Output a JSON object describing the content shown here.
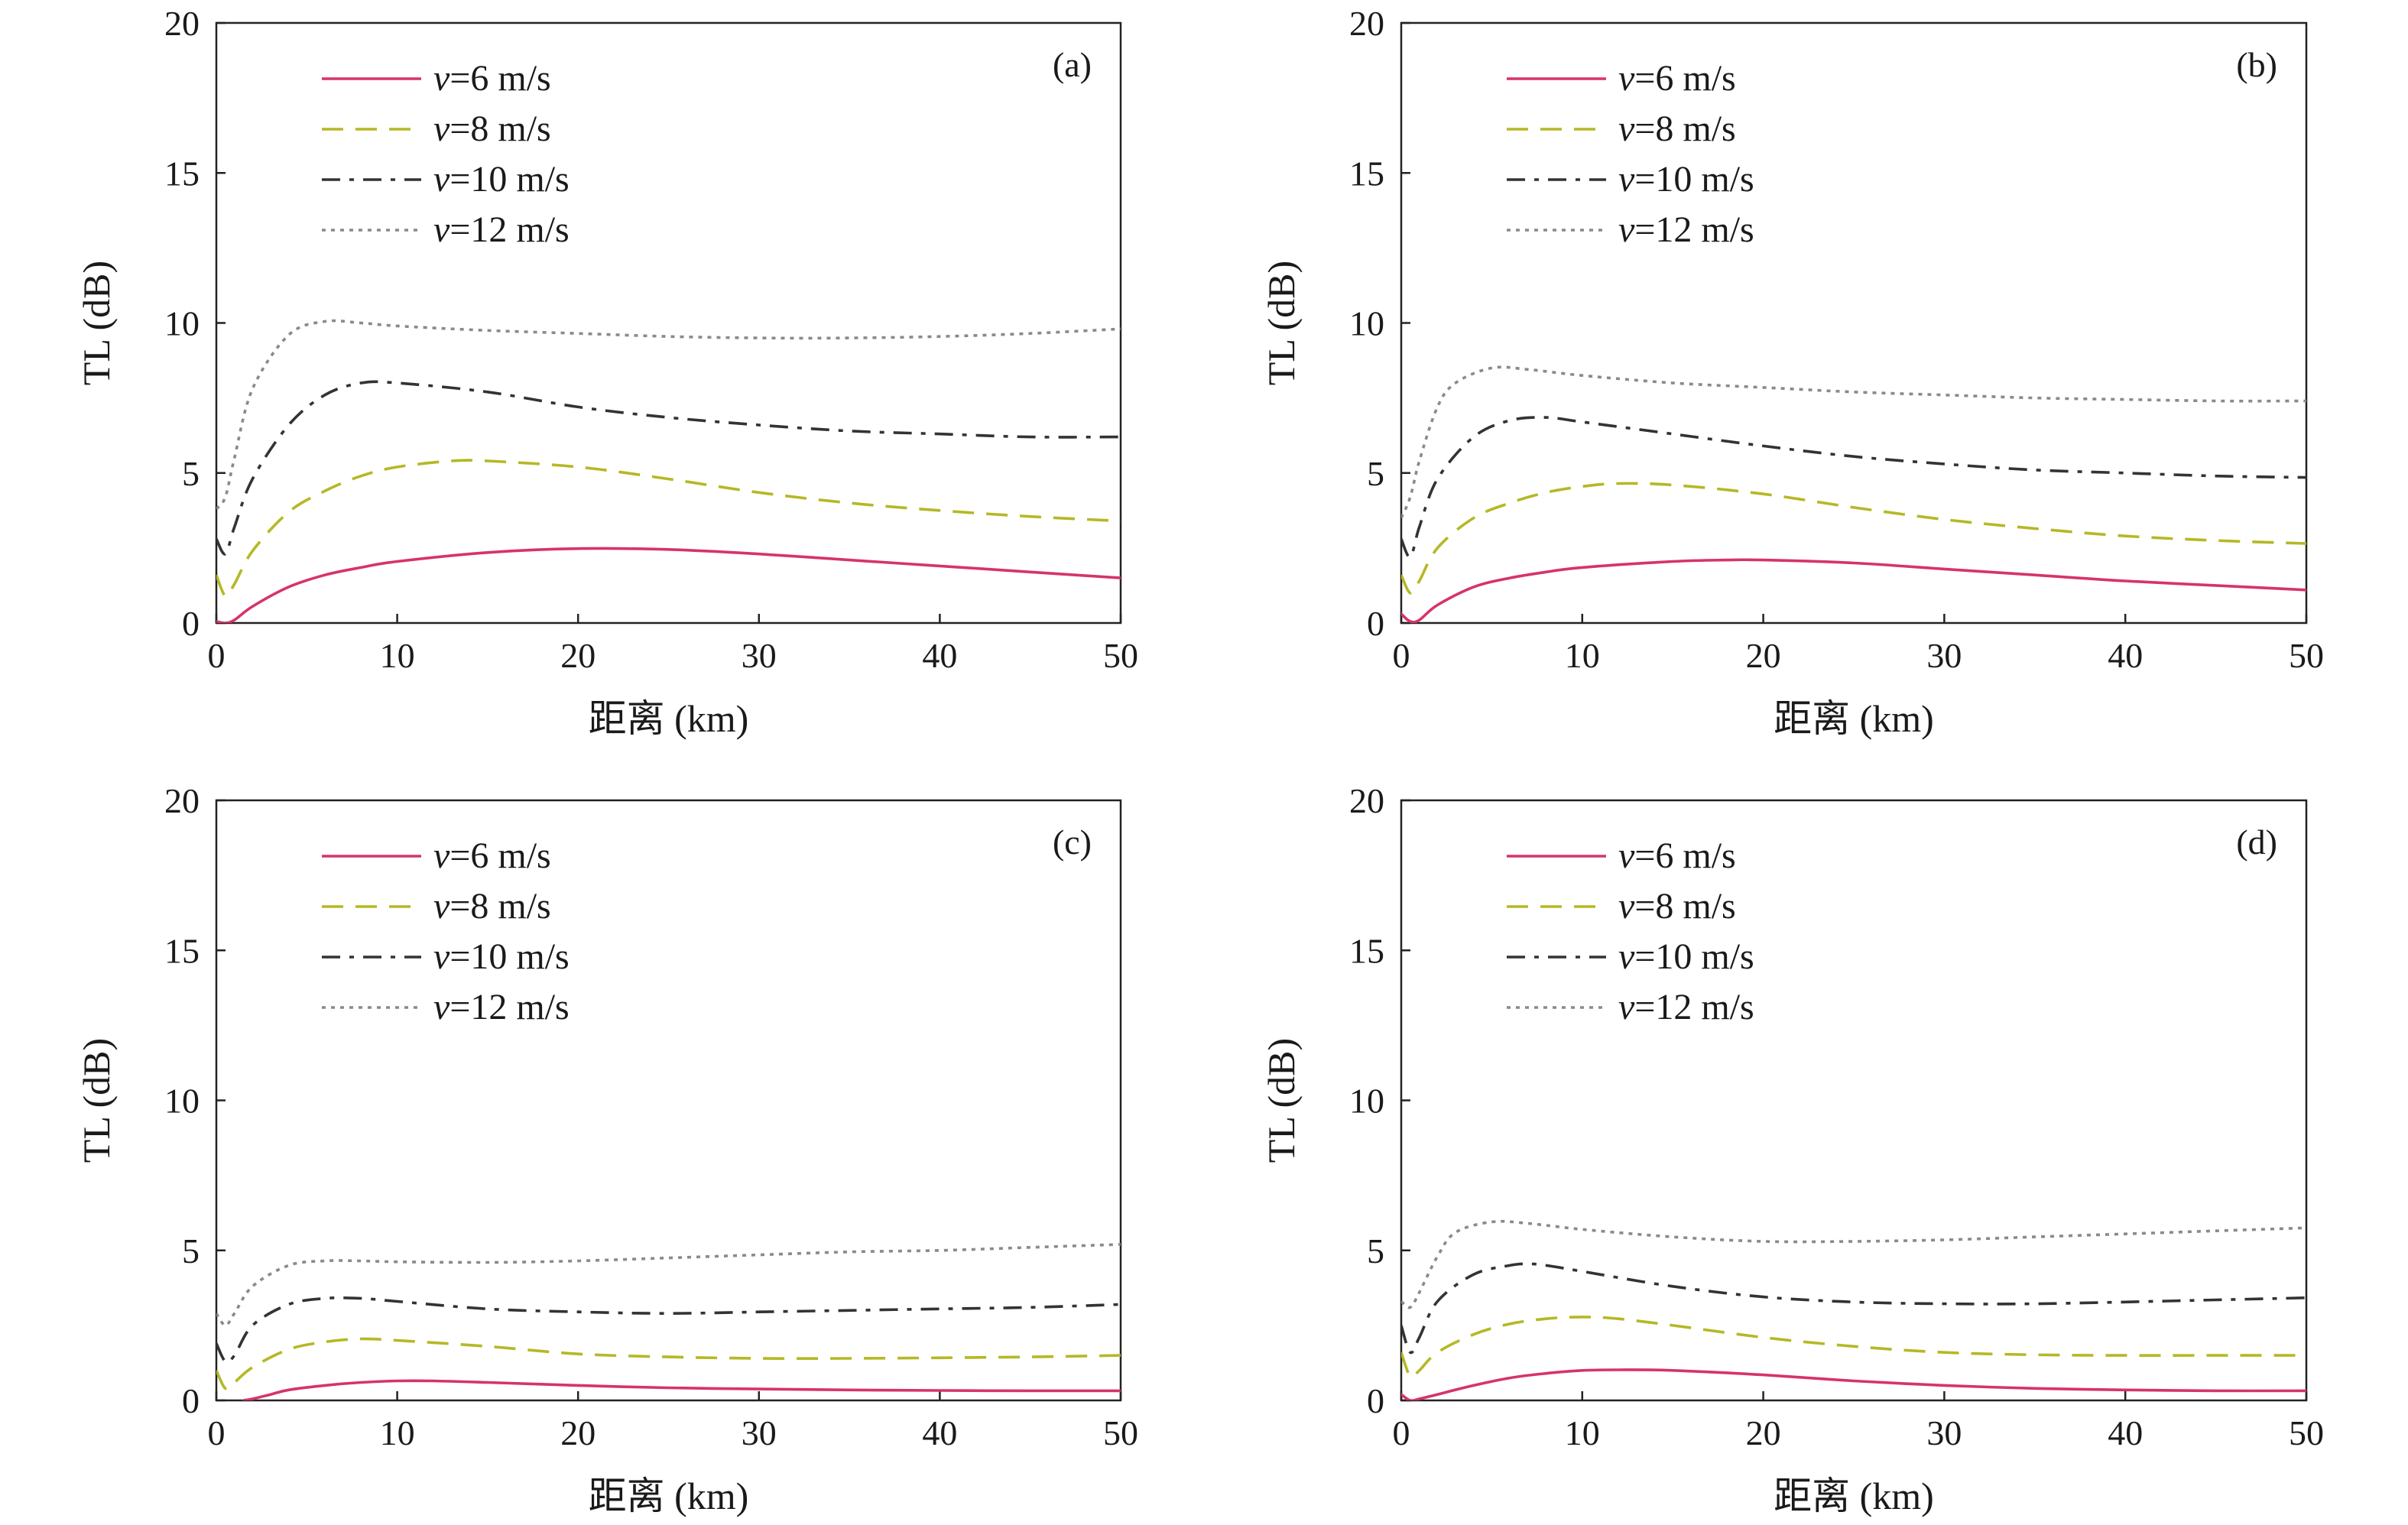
{
  "chart_data": [
    {
      "type": "line",
      "panel": "(a)",
      "xlabel": "距离 (km)",
      "ylabel": "TL (dB)",
      "xlim": [
        0,
        50
      ],
      "ylim": [
        0,
        20
      ],
      "xticks": [
        "0",
        "10",
        "20",
        "30",
        "40",
        "50"
      ],
      "yticks": [
        "0",
        "5",
        "10",
        "15",
        "20"
      ],
      "legend_position": "top-left",
      "series": [
        {
          "name": "v=6 m/s",
          "name_var": "v",
          "name_rest": "=6 m/s",
          "color": "#d6336c",
          "dash": "solid",
          "x": [
            0,
            0.5,
            1,
            2,
            4,
            6,
            8,
            10,
            15,
            20,
            25,
            30,
            35,
            40,
            45,
            50
          ],
          "y": [
            0.05,
            0.0,
            0.1,
            0.55,
            1.2,
            1.6,
            1.85,
            2.05,
            2.35,
            2.48,
            2.45,
            2.3,
            2.1,
            1.9,
            1.7,
            1.5
          ]
        },
        {
          "name": "v=8 m/s",
          "name_var": "v",
          "name_rest": "=8 m/s",
          "color": "#b5b825",
          "dash": "dashed",
          "x": [
            0,
            0.5,
            1,
            2,
            4,
            6,
            8,
            10,
            13,
            15,
            20,
            25,
            30,
            35,
            40,
            45,
            50
          ],
          "y": [
            1.6,
            0.9,
            1.3,
            2.4,
            3.7,
            4.4,
            4.9,
            5.2,
            5.4,
            5.4,
            5.2,
            4.8,
            4.35,
            4.0,
            3.75,
            3.55,
            3.4
          ]
        },
        {
          "name": "v=10 m/s",
          "name_var": "v",
          "name_rest": "=10 m/s",
          "color": "#333333",
          "dash": "dashdot",
          "x": [
            0,
            0.5,
            1,
            2,
            4,
            6,
            8,
            10,
            15,
            20,
            25,
            30,
            35,
            40,
            45,
            50
          ],
          "y": [
            2.8,
            2.3,
            3.2,
            4.8,
            6.6,
            7.6,
            8.0,
            8.0,
            7.7,
            7.2,
            6.85,
            6.6,
            6.4,
            6.3,
            6.2,
            6.2
          ]
        },
        {
          "name": "v=12 m/s",
          "name_var": "v",
          "name_rest": "=12 m/s",
          "color": "#8a8a8a",
          "dash": "dotted",
          "x": [
            0,
            0.5,
            1,
            2,
            4,
            6,
            8,
            10,
            15,
            20,
            25,
            30,
            35,
            40,
            45,
            50
          ],
          "y": [
            3.8,
            4.2,
            5.5,
            7.8,
            9.6,
            10.05,
            10.0,
            9.9,
            9.75,
            9.65,
            9.55,
            9.5,
            9.5,
            9.55,
            9.65,
            9.8
          ]
        }
      ]
    },
    {
      "type": "line",
      "panel": "(b)",
      "xlabel": "距离 (km)",
      "ylabel": "TL (dB)",
      "xlim": [
        0,
        50
      ],
      "ylim": [
        0,
        20
      ],
      "xticks": [
        "0",
        "10",
        "20",
        "30",
        "40",
        "50"
      ],
      "yticks": [
        "0",
        "5",
        "10",
        "15",
        "20"
      ],
      "legend_position": "top-left",
      "series": [
        {
          "name": "v=6 m/s",
          "name_var": "v",
          "name_rest": "=6 m/s",
          "color": "#d6336c",
          "dash": "solid",
          "x": [
            0,
            0.5,
            1,
            2,
            4,
            6,
            8,
            10,
            15,
            18,
            20,
            25,
            30,
            35,
            40,
            45,
            50
          ],
          "y": [
            0.3,
            0.05,
            0.1,
            0.6,
            1.2,
            1.5,
            1.7,
            1.85,
            2.05,
            2.1,
            2.1,
            2.0,
            1.8,
            1.6,
            1.4,
            1.25,
            1.1
          ]
        },
        {
          "name": "v=8 m/s",
          "name_var": "v",
          "name_rest": "=8 m/s",
          "color": "#b5b825",
          "dash": "dashed",
          "x": [
            0,
            0.5,
            1,
            2,
            4,
            6,
            8,
            10,
            12,
            15,
            20,
            25,
            30,
            35,
            40,
            45,
            50
          ],
          "y": [
            1.6,
            1.0,
            1.4,
            2.5,
            3.5,
            4.0,
            4.35,
            4.55,
            4.65,
            4.6,
            4.3,
            3.85,
            3.45,
            3.15,
            2.9,
            2.75,
            2.65
          ]
        },
        {
          "name": "v=10 m/s",
          "name_var": "v",
          "name_rest": "=10 m/s",
          "color": "#333333",
          "dash": "dashdot",
          "x": [
            0,
            0.5,
            1,
            2,
            4,
            6,
            8,
            10,
            15,
            20,
            25,
            30,
            35,
            40,
            45,
            50
          ],
          "y": [
            2.8,
            2.2,
            3.2,
            4.8,
            6.2,
            6.75,
            6.85,
            6.7,
            6.3,
            5.9,
            5.55,
            5.3,
            5.1,
            5.0,
            4.9,
            4.85
          ]
        },
        {
          "name": "v=12 m/s",
          "name_var": "v",
          "name_rest": "=12 m/s",
          "color": "#8a8a8a",
          "dash": "dotted",
          "x": [
            0,
            0.5,
            1,
            2,
            3,
            5,
            7,
            10,
            15,
            20,
            25,
            30,
            35,
            40,
            45,
            50
          ],
          "y": [
            3.5,
            4.2,
            5.4,
            7.2,
            8.0,
            8.5,
            8.45,
            8.25,
            8.0,
            7.85,
            7.7,
            7.6,
            7.5,
            7.45,
            7.4,
            7.4
          ]
        }
      ]
    },
    {
      "type": "line",
      "panel": "(c)",
      "xlabel": "距离 (km)",
      "ylabel": "TL (dB)",
      "xlim": [
        0,
        50
      ],
      "ylim": [
        0,
        20
      ],
      "xticks": [
        "0",
        "10",
        "20",
        "30",
        "40",
        "50"
      ],
      "yticks": [
        "0",
        "5",
        "10",
        "15",
        "20"
      ],
      "legend_position": "top-left",
      "series": [
        {
          "name": "v=6 m/s",
          "name_var": "v",
          "name_rest": "=6 m/s",
          "color": "#d6336c",
          "dash": "solid",
          "x": [
            1.5,
            2,
            3,
            4,
            6,
            8,
            10,
            12,
            15,
            20,
            25,
            30,
            35,
            40,
            45,
            50
          ],
          "y": [
            0.0,
            0.05,
            0.2,
            0.35,
            0.5,
            0.6,
            0.65,
            0.65,
            0.6,
            0.5,
            0.42,
            0.38,
            0.35,
            0.33,
            0.32,
            0.32
          ]
        },
        {
          "name": "v=8 m/s",
          "name_var": "v",
          "name_rest": "=8 m/s",
          "color": "#b5b825",
          "dash": "dashed",
          "x": [
            0,
            0.5,
            1,
            2,
            4,
            6,
            8,
            10,
            15,
            20,
            25,
            30,
            35,
            40,
            45,
            50
          ],
          "y": [
            1.0,
            0.4,
            0.6,
            1.1,
            1.7,
            1.95,
            2.05,
            2.0,
            1.8,
            1.55,
            1.45,
            1.4,
            1.4,
            1.42,
            1.45,
            1.5
          ]
        },
        {
          "name": "v=10 m/s",
          "name_var": "v",
          "name_rest": "=10 m/s",
          "color": "#333333",
          "dash": "dashdot",
          "x": [
            0,
            0.5,
            1,
            2,
            4,
            6,
            8,
            10,
            15,
            20,
            25,
            30,
            35,
            40,
            45,
            50
          ],
          "y": [
            1.9,
            1.3,
            1.5,
            2.5,
            3.2,
            3.4,
            3.4,
            3.3,
            3.05,
            2.95,
            2.9,
            2.95,
            3.0,
            3.05,
            3.1,
            3.2
          ]
        },
        {
          "name": "v=12 m/s",
          "name_var": "v",
          "name_rest": "=12 m/s",
          "color": "#8a8a8a",
          "dash": "dotted",
          "x": [
            0,
            0.5,
            1,
            2,
            4,
            6,
            8,
            10,
            15,
            20,
            25,
            30,
            35,
            40,
            45,
            50
          ],
          "y": [
            2.9,
            2.5,
            2.9,
            3.8,
            4.5,
            4.65,
            4.65,
            4.62,
            4.6,
            4.65,
            4.75,
            4.85,
            4.95,
            5.0,
            5.1,
            5.2
          ]
        }
      ]
    },
    {
      "type": "line",
      "panel": "(d)",
      "xlabel": "距离 (km)",
      "ylabel": "TL (dB)",
      "xlim": [
        0,
        50
      ],
      "ylim": [
        0,
        20
      ],
      "xticks": [
        "0",
        "10",
        "20",
        "30",
        "40",
        "50"
      ],
      "yticks": [
        "0",
        "5",
        "10",
        "15",
        "20"
      ],
      "legend_position": "top-left",
      "series": [
        {
          "name": "v=6 m/s",
          "name_var": "v",
          "name_rest": "=6 m/s",
          "color": "#d6336c",
          "dash": "solid",
          "x": [
            0,
            0.5,
            1,
            2,
            4,
            6,
            8,
            10,
            12,
            15,
            20,
            25,
            30,
            35,
            40,
            45,
            50
          ],
          "y": [
            0.2,
            0.0,
            0.05,
            0.2,
            0.5,
            0.75,
            0.9,
            1.0,
            1.02,
            1.0,
            0.85,
            0.65,
            0.5,
            0.4,
            0.35,
            0.32,
            0.32
          ]
        },
        {
          "name": "v=8 m/s",
          "name_var": "v",
          "name_rest": "=8 m/s",
          "color": "#b5b825",
          "dash": "dashed",
          "x": [
            0,
            0.5,
            1,
            2,
            4,
            6,
            8,
            10,
            12,
            15,
            20,
            25,
            30,
            35,
            40,
            45,
            50
          ],
          "y": [
            1.6,
            0.8,
            1.0,
            1.6,
            2.2,
            2.55,
            2.72,
            2.78,
            2.72,
            2.5,
            2.1,
            1.8,
            1.6,
            1.52,
            1.5,
            1.5,
            1.5
          ]
        },
        {
          "name": "v=10 m/s",
          "name_var": "v",
          "name_rest": "=10 m/s",
          "color": "#333333",
          "dash": "dashdot",
          "x": [
            0,
            0.5,
            1,
            2,
            4,
            6,
            7,
            8,
            10,
            15,
            20,
            25,
            30,
            35,
            40,
            45,
            50
          ],
          "y": [
            2.5,
            1.6,
            2.1,
            3.3,
            4.2,
            4.5,
            4.55,
            4.5,
            4.3,
            3.8,
            3.45,
            3.28,
            3.22,
            3.22,
            3.28,
            3.35,
            3.42
          ]
        },
        {
          "name": "v=12 m/s",
          "name_var": "v",
          "name_rest": "=12 m/s",
          "color": "#8a8a8a",
          "dash": "dotted",
          "x": [
            0,
            0.5,
            1,
            2,
            3,
            5,
            7,
            10,
            15,
            20,
            25,
            30,
            35,
            40,
            45,
            50
          ],
          "y": [
            3.3,
            3.1,
            3.6,
            4.8,
            5.6,
            5.95,
            5.9,
            5.7,
            5.45,
            5.3,
            5.3,
            5.35,
            5.45,
            5.55,
            5.65,
            5.75
          ]
        }
      ]
    }
  ]
}
